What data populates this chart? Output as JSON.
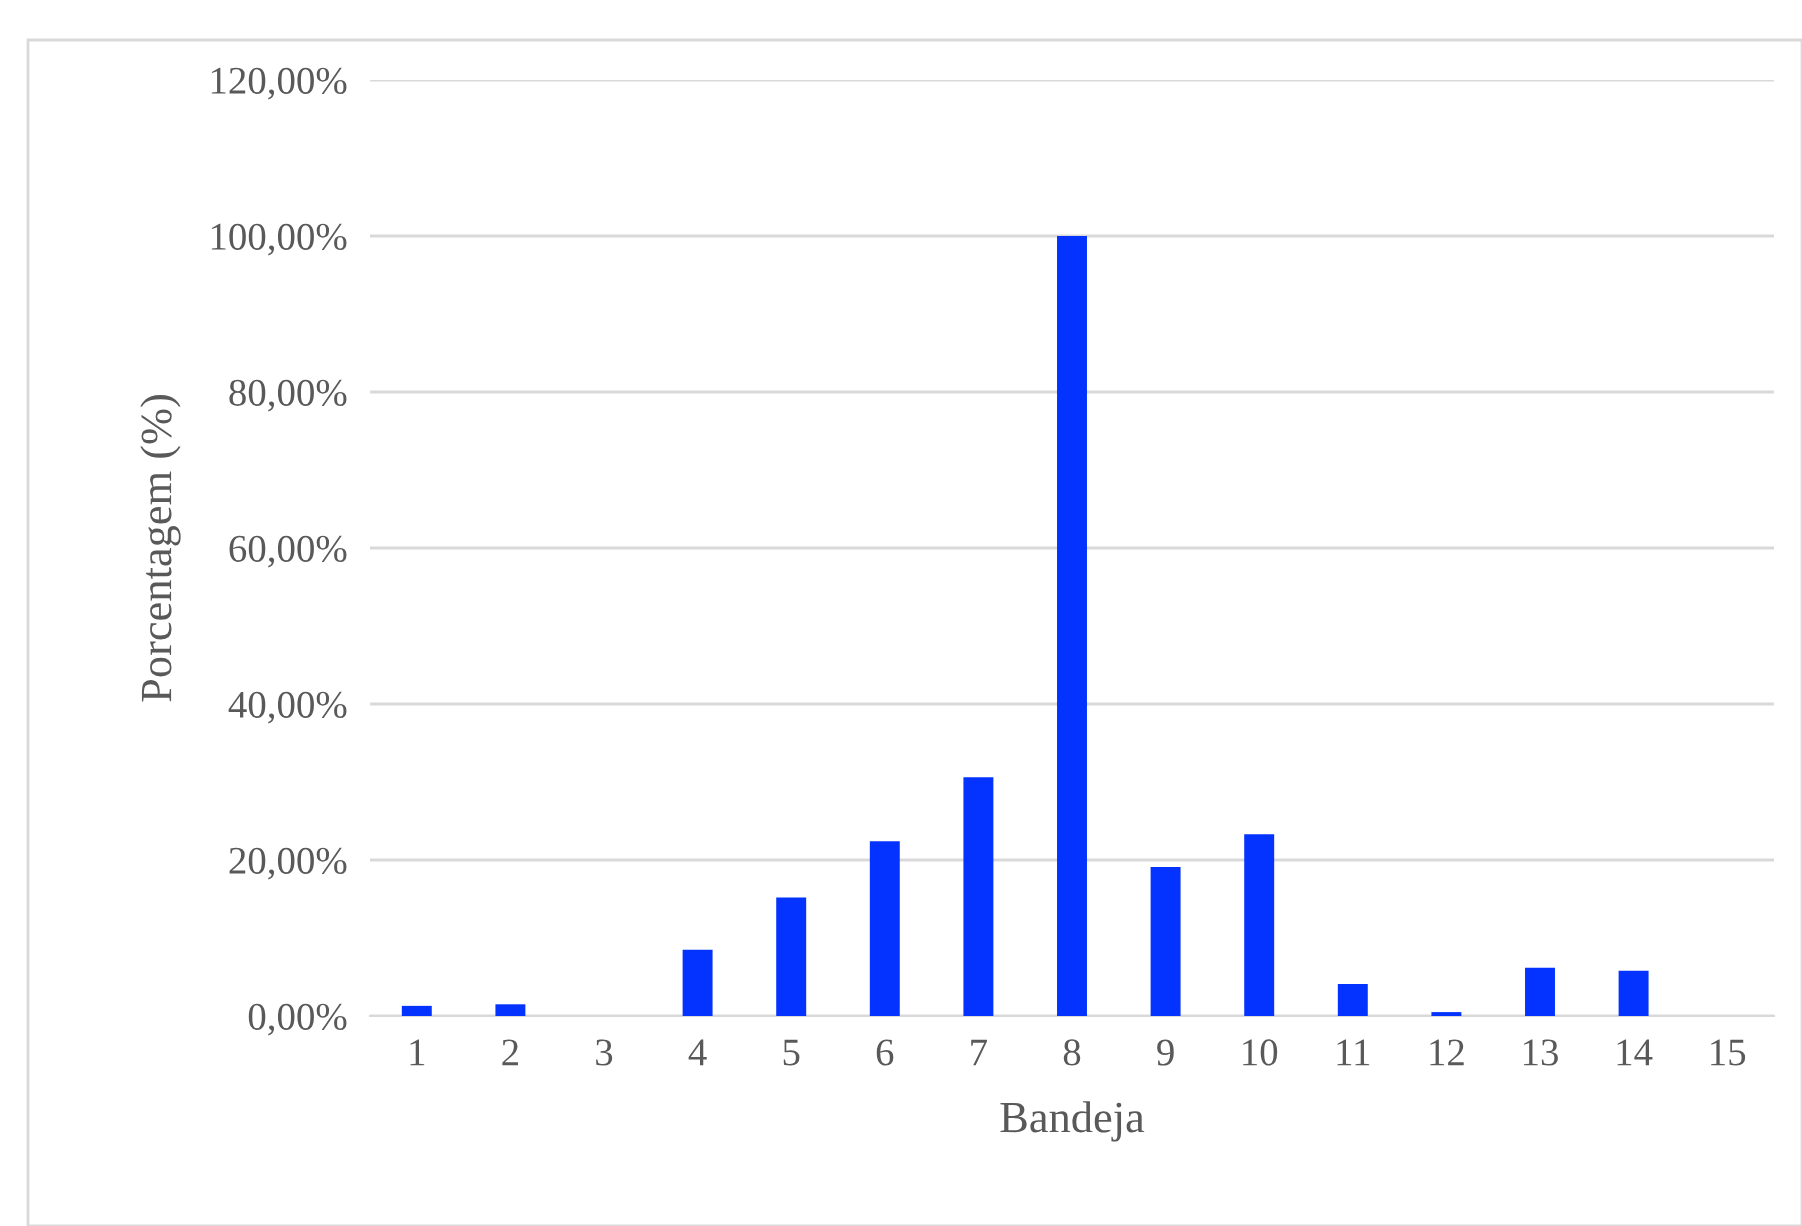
{
  "chart_data": {
    "type": "bar",
    "xlabel": "Bandeja",
    "ylabel": "Porcentagem (%)",
    "categories": [
      "1",
      "2",
      "3",
      "4",
      "5",
      "6",
      "7",
      "8",
      "9",
      "10",
      "11",
      "12",
      "13",
      "14",
      "15"
    ],
    "values": [
      1.3,
      1.5,
      0,
      8.5,
      15.2,
      22.4,
      30.6,
      100,
      19.1,
      23.3,
      4.1,
      0.5,
      6.2,
      5.8,
      0
    ],
    "color": "#0433ff",
    "ylim": [
      0,
      120
    ],
    "yticks": [
      {
        "value": 0,
        "label": "0,00%"
      },
      {
        "value": 20,
        "label": "20,00%"
      },
      {
        "value": 40,
        "label": "40,00%"
      },
      {
        "value": 60,
        "label": "60,00%"
      },
      {
        "value": 80,
        "label": "80,00%"
      },
      {
        "value": 100,
        "label": "100,00%"
      },
      {
        "value": 120,
        "label": "120,00%"
      }
    ],
    "grid": "y"
  }
}
